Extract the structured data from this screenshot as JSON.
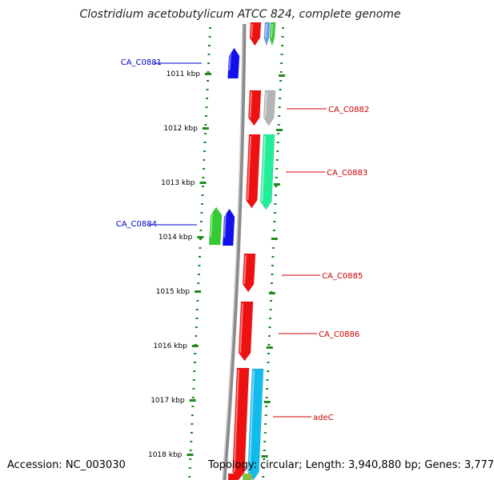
{
  "title": "Clostridium acetobutylicum ATCC 824, complete genome",
  "footer": {
    "accession": "Accession: NC_003030",
    "summary": "Topology: circular; Length: 3,940,880 bp; Genes: 3,777"
  },
  "ticks": [
    {
      "label": "1011 kbp"
    },
    {
      "label": "1012 kbp"
    },
    {
      "label": "1013 kbp"
    },
    {
      "label": "1014 kbp"
    },
    {
      "label": "1015 kbp"
    },
    {
      "label": "1016 kbp"
    },
    {
      "label": "1017 kbp"
    },
    {
      "label": "1018 kbp"
    }
  ],
  "colors": {
    "backbone": "#8c8c8c",
    "tick": "#1f8a1f",
    "forward_label": "#cc0000",
    "reverse_label": "#0000cc",
    "gene_red": "#ee1111",
    "gene_blue": "#1111ee",
    "gene_green": "#33cc33",
    "gene_gray": "#b4b4b4",
    "gene_teal": "#22ee99",
    "gene_cyan": "#11bbee"
  },
  "gene_labels": [
    {
      "name": "CA_C0881",
      "strand": "reverse"
    },
    {
      "name": "CA_C0882",
      "strand": "forward"
    },
    {
      "name": "CA_C0883",
      "strand": "forward"
    },
    {
      "name": "CA_C0884",
      "strand": "reverse"
    },
    {
      "name": "CA_C0885",
      "strand": "forward"
    },
    {
      "name": "CA_C0886",
      "strand": "forward"
    },
    {
      "name": "adeC",
      "strand": "forward"
    }
  ]
}
